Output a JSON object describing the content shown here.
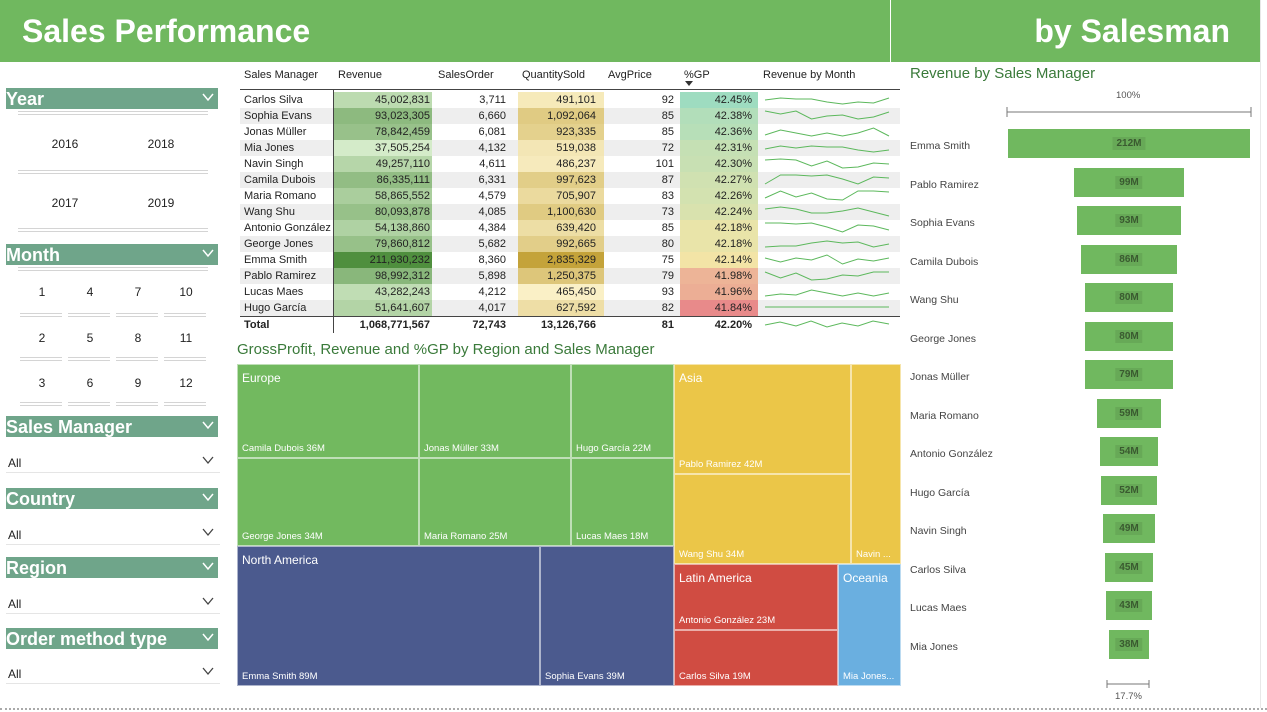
{
  "header": {
    "left_title": "Sales Performance",
    "right_title": "by Salesman"
  },
  "slicers": {
    "year": {
      "title": "Year",
      "items": [
        "2016",
        "2018",
        "2017",
        "2019"
      ]
    },
    "month": {
      "title": "Month",
      "items": [
        "1",
        "4",
        "7",
        "10",
        "2",
        "5",
        "8",
        "11",
        "3",
        "6",
        "9",
        "12"
      ]
    },
    "sales_manager": {
      "title": "Sales Manager",
      "value": "All"
    },
    "country": {
      "title": "Country",
      "value": "All"
    },
    "region": {
      "title": "Region",
      "value": "All"
    },
    "order_method": {
      "title": "Order method type",
      "value": "All"
    }
  },
  "table": {
    "columns": [
      "Sales Manager",
      "Revenue",
      "SalesOrder",
      "QuantitySold",
      "AvgPrice",
      "%GP",
      "Revenue by Month"
    ],
    "rows": [
      [
        "Carlos Silva",
        "45,002,831",
        "3,711",
        "491,101",
        "92",
        "42.45%"
      ],
      [
        "Sophia Evans",
        "93,023,305",
        "6,660",
        "1,092,064",
        "85",
        "42.38%"
      ],
      [
        "Jonas Müller",
        "78,842,459",
        "6,081",
        "923,335",
        "85",
        "42.36%"
      ],
      [
        "Mia Jones",
        "37,505,254",
        "4,132",
        "519,038",
        "72",
        "42.31%"
      ],
      [
        "Navin Singh",
        "49,257,110",
        "4,611",
        "486,237",
        "101",
        "42.30%"
      ],
      [
        "Camila Dubois",
        "86,335,111",
        "6,331",
        "997,623",
        "87",
        "42.27%"
      ],
      [
        "Maria Romano",
        "58,865,552",
        "4,579",
        "705,907",
        "83",
        "42.26%"
      ],
      [
        "Wang Shu",
        "80,093,878",
        "4,085",
        "1,100,630",
        "73",
        "42.24%"
      ],
      [
        "Antonio González",
        "54,138,860",
        "4,384",
        "639,420",
        "85",
        "42.18%"
      ],
      [
        "George Jones",
        "79,860,812",
        "5,682",
        "992,665",
        "80",
        "42.18%"
      ],
      [
        "Emma Smith",
        "211,930,232",
        "8,360",
        "2,835,329",
        "75",
        "42.14%"
      ],
      [
        "Pablo Ramirez",
        "98,992,312",
        "5,898",
        "1,250,375",
        "79",
        "41.98%"
      ],
      [
        "Lucas Maes",
        "43,282,243",
        "4,212",
        "465,450",
        "93",
        "41.96%"
      ],
      [
        "Hugo García",
        "51,641,607",
        "4,017",
        "627,592",
        "82",
        "41.84%"
      ]
    ],
    "total": [
      "Total",
      "1,068,771,567",
      "72,743",
      "13,126,766",
      "81",
      "42.20%"
    ]
  },
  "treemap": {
    "title": "GrossProfit, Revenue and %GP by Region and Sales Manager",
    "regions": {
      "europe": "Europe",
      "asia": "Asia",
      "north_america": "North America",
      "latin_america": "Latin America",
      "oceania": "Oceania"
    },
    "tiles": [
      "Camila Dubois 36M",
      "Jonas Müller 33M",
      "Hugo García 22M",
      "George Jones 34M",
      "Maria Romano 25M",
      "Lucas Maes 18M",
      "Pablo Ramirez 42M",
      "Wang Shu 34M",
      "Navin ...",
      "Emma Smith 89M",
      "Sophia Evans 39M",
      "Antonio González 23M",
      "Carlos Silva 19M",
      "Mia Jones..."
    ]
  },
  "funnel": {
    "title": "Revenue by Sales Manager",
    "top_label": "100%",
    "bottom_label": "17.7%",
    "items": [
      {
        "name": "Emma Smith",
        "label": "212M",
        "value": 212
      },
      {
        "name": "Pablo Ramirez",
        "label": "99M",
        "value": 99
      },
      {
        "name": "Sophia Evans",
        "label": "93M",
        "value": 93
      },
      {
        "name": "Camila Dubois",
        "label": "86M",
        "value": 86
      },
      {
        "name": "Wang Shu",
        "label": "80M",
        "value": 80
      },
      {
        "name": "George Jones",
        "label": "80M",
        "value": 80
      },
      {
        "name": "Jonas Müller",
        "label": "79M",
        "value": 79
      },
      {
        "name": "Maria Romano",
        "label": "59M",
        "value": 59
      },
      {
        "name": "Antonio González",
        "label": "54M",
        "value": 54
      },
      {
        "name": "Hugo García",
        "label": "52M",
        "value": 52
      },
      {
        "name": "Navin Singh",
        "label": "49M",
        "value": 49
      },
      {
        "name": "Carlos Silva",
        "label": "45M",
        "value": 45
      },
      {
        "name": "Lucas Maes",
        "label": "43M",
        "value": 43
      },
      {
        "name": "Mia Jones",
        "label": "38M",
        "value": 38
      }
    ]
  },
  "colors": {
    "banner": "#70b85f",
    "slicer_header": "#6fa58a",
    "europe": "#72b95f",
    "asia": "#ebc648",
    "north_america": "#4b5a8e",
    "latin_america": "#d04c42",
    "oceania": "#6aafe0"
  }
}
